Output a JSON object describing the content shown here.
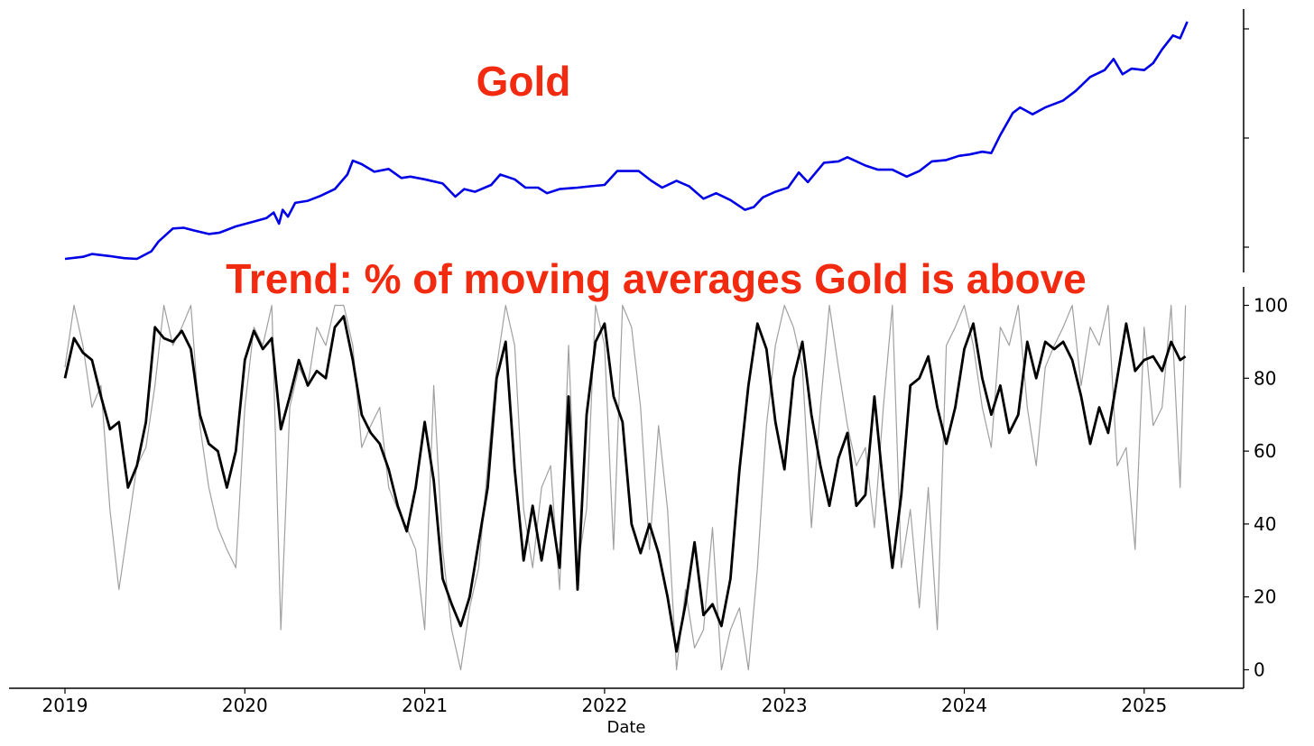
{
  "chart_data": [
    {
      "type": "line",
      "title": "Gold",
      "x_unit": "year",
      "xlim": [
        2019.0,
        2025.23
      ],
      "y_ticks_labeled": false,
      "series": [
        {
          "color": "#0000e6",
          "x": [
            2019.0,
            2019.1,
            2019.15,
            2019.25,
            2019.33,
            2019.4,
            2019.48,
            2019.52,
            2019.6,
            2019.66,
            2019.72,
            2019.8,
            2019.86,
            2019.95,
            2020.05,
            2020.12,
            2020.16,
            2020.19,
            2020.21,
            2020.24,
            2020.28,
            2020.35,
            2020.42,
            2020.5,
            2020.57,
            2020.6,
            2020.65,
            2020.72,
            2020.8,
            2020.87,
            2020.92,
            2021.0,
            2021.1,
            2021.17,
            2021.22,
            2021.28,
            2021.37,
            2021.42,
            2021.5,
            2021.56,
            2021.63,
            2021.68,
            2021.75,
            2021.85,
            2021.92,
            2022.0,
            2022.07,
            2022.19,
            2022.26,
            2022.32,
            2022.4,
            2022.47,
            2022.55,
            2022.62,
            2022.7,
            2022.78,
            2022.83,
            2022.88,
            2022.95,
            2023.02,
            2023.08,
            2023.13,
            2023.22,
            2023.3,
            2023.35,
            2023.45,
            2023.52,
            2023.6,
            2023.68,
            2023.75,
            2023.82,
            2023.9,
            2023.97,
            2024.03,
            2024.1,
            2024.15,
            2024.2,
            2024.27,
            2024.31,
            2024.38,
            2024.45,
            2024.55,
            2024.62,
            2024.7,
            2024.78,
            2024.83,
            2024.88,
            2024.93,
            2025.0,
            2025.05,
            2025.1,
            2025.16,
            2025.2,
            2025.24
          ],
          "y": [
            1285,
            1300,
            1320,
            1305,
            1290,
            1285,
            1340,
            1410,
            1505,
            1510,
            1490,
            1465,
            1475,
            1520,
            1555,
            1580,
            1620,
            1540,
            1640,
            1590,
            1690,
            1705,
            1740,
            1790,
            1895,
            1995,
            1970,
            1915,
            1935,
            1870,
            1880,
            1860,
            1830,
            1735,
            1790,
            1770,
            1820,
            1895,
            1860,
            1800,
            1800,
            1760,
            1790,
            1800,
            1810,
            1820,
            1920,
            1920,
            1850,
            1800,
            1850,
            1810,
            1720,
            1760,
            1710,
            1640,
            1660,
            1730,
            1770,
            1800,
            1910,
            1840,
            1980,
            1990,
            2020,
            1960,
            1930,
            1930,
            1880,
            1920,
            1990,
            2000,
            2030,
            2040,
            2060,
            2050,
            2180,
            2340,
            2380,
            2330,
            2380,
            2430,
            2500,
            2600,
            2650,
            2730,
            2620,
            2660,
            2650,
            2700,
            2800,
            2900,
            2880,
            3000
          ]
        }
      ]
    },
    {
      "type": "line",
      "title": "Trend: % of moving averages Gold is above",
      "xlabel": "Date",
      "x_unit": "year",
      "x_ticks": [
        "2019",
        "2020",
        "2021",
        "2022",
        "2023",
        "2024",
        "2025"
      ],
      "y_ticks": [
        "0",
        "20",
        "40",
        "60",
        "80",
        "100"
      ],
      "xlim": [
        2019.0,
        2025.23
      ],
      "ylim": [
        0,
        100
      ],
      "series": [
        {
          "color": "#a0a0a0",
          "x": [
            2019.0,
            2019.05,
            2019.1,
            2019.15,
            2019.2,
            2019.25,
            2019.3,
            2019.35,
            2019.4,
            2019.45,
            2019.5,
            2019.55,
            2019.6,
            2019.65,
            2019.7,
            2019.75,
            2019.8,
            2019.85,
            2019.9,
            2019.95,
            2020.0,
            2020.05,
            2020.1,
            2020.15,
            2020.2,
            2020.25,
            2020.3,
            2020.35,
            2020.4,
            2020.45,
            2020.5,
            2020.55,
            2020.6,
            2020.65,
            2020.7,
            2020.75,
            2020.8,
            2020.85,
            2020.9,
            2020.95,
            2021.0,
            2021.05,
            2021.1,
            2021.15,
            2021.2,
            2021.25,
            2021.3,
            2021.35,
            2021.4,
            2021.45,
            2021.5,
            2021.55,
            2021.6,
            2021.65,
            2021.7,
            2021.75,
            2021.8,
            2021.85,
            2021.9,
            2021.95,
            2022.0,
            2022.05,
            2022.1,
            2022.15,
            2022.2,
            2022.25,
            2022.3,
            2022.35,
            2022.4,
            2022.45,
            2022.5,
            2022.55,
            2022.6,
            2022.65,
            2022.7,
            2022.75,
            2022.8,
            2022.85,
            2022.9,
            2022.95,
            2023.0,
            2023.05,
            2023.1,
            2023.15,
            2023.2,
            2023.25,
            2023.3,
            2023.35,
            2023.4,
            2023.45,
            2023.5,
            2023.55,
            2023.6,
            2023.65,
            2023.7,
            2023.75,
            2023.8,
            2023.85,
            2023.9,
            2023.95,
            2024.0,
            2024.05,
            2024.1,
            2024.15,
            2024.2,
            2024.25,
            2024.3,
            2024.35,
            2024.4,
            2024.45,
            2024.5,
            2024.55,
            2024.6,
            2024.65,
            2024.7,
            2024.75,
            2024.8,
            2024.85,
            2024.9,
            2024.95,
            2025.0,
            2025.05,
            2025.1,
            2025.15,
            2025.2,
            2025.23
          ],
          "y": [
            83,
            100,
            89,
            72,
            78,
            44,
            22,
            39,
            56,
            61,
            78,
            100,
            89,
            94,
            100,
            67,
            50,
            39,
            33,
            28,
            72,
            94,
            89,
            100,
            11,
            72,
            83,
            78,
            94,
            89,
            100,
            100,
            89,
            61,
            67,
            72,
            50,
            44,
            39,
            33,
            11,
            78,
            33,
            11,
            0,
            17,
            28,
            56,
            83,
            100,
            89,
            44,
            28,
            50,
            56,
            22,
            89,
            28,
            44,
            100,
            89,
            33,
            100,
            94,
            72,
            33,
            67,
            44,
            0,
            22,
            6,
            11,
            39,
            0,
            11,
            17,
            0,
            28,
            67,
            89,
            100,
            94,
            83,
            39,
            72,
            100,
            83,
            67,
            56,
            61,
            39,
            72,
            100,
            28,
            44,
            17,
            50,
            11,
            89,
            94,
            100,
            89,
            72,
            61,
            94,
            89,
            100,
            72,
            56,
            83,
            89,
            94,
            100,
            78,
            94,
            89,
            100,
            56,
            61,
            33,
            94,
            67,
            72,
            100,
            50,
            100
          ]
        },
        {
          "color": "#000000",
          "x": [
            2019.0,
            2019.05,
            2019.1,
            2019.15,
            2019.2,
            2019.25,
            2019.3,
            2019.35,
            2019.4,
            2019.45,
            2019.5,
            2019.55,
            2019.6,
            2019.65,
            2019.7,
            2019.75,
            2019.8,
            2019.85,
            2019.9,
            2019.95,
            2020.0,
            2020.05,
            2020.1,
            2020.15,
            2020.2,
            2020.25,
            2020.3,
            2020.35,
            2020.4,
            2020.45,
            2020.5,
            2020.55,
            2020.6,
            2020.65,
            2020.7,
            2020.75,
            2020.8,
            2020.85,
            2020.9,
            2020.95,
            2021.0,
            2021.05,
            2021.1,
            2021.15,
            2021.2,
            2021.25,
            2021.3,
            2021.35,
            2021.4,
            2021.45,
            2021.5,
            2021.55,
            2021.6,
            2021.65,
            2021.7,
            2021.75,
            2021.8,
            2021.85,
            2021.9,
            2021.95,
            2022.0,
            2022.05,
            2022.1,
            2022.15,
            2022.2,
            2022.25,
            2022.3,
            2022.35,
            2022.4,
            2022.45,
            2022.5,
            2022.55,
            2022.6,
            2022.65,
            2022.7,
            2022.75,
            2022.8,
            2022.85,
            2022.9,
            2022.95,
            2023.0,
            2023.05,
            2023.1,
            2023.15,
            2023.2,
            2023.25,
            2023.3,
            2023.35,
            2023.4,
            2023.45,
            2023.5,
            2023.55,
            2023.6,
            2023.65,
            2023.7,
            2023.75,
            2023.8,
            2023.85,
            2023.9,
            2023.95,
            2024.0,
            2024.05,
            2024.1,
            2024.15,
            2024.2,
            2024.25,
            2024.3,
            2024.35,
            2024.4,
            2024.45,
            2024.5,
            2024.55,
            2024.6,
            2024.65,
            2024.7,
            2024.75,
            2024.8,
            2024.85,
            2024.9,
            2024.95,
            2025.0,
            2025.05,
            2025.1,
            2025.15,
            2025.2,
            2025.23
          ],
          "y": [
            80,
            91,
            87,
            85,
            75,
            66,
            68,
            50,
            56,
            68,
            94,
            91,
            90,
            93,
            88,
            70,
            62,
            60,
            50,
            60,
            85,
            93,
            88,
            91,
            66,
            75,
            85,
            78,
            82,
            80,
            94,
            97,
            85,
            70,
            65,
            62,
            55,
            45,
            38,
            50,
            68,
            52,
            25,
            18,
            12,
            20,
            35,
            50,
            80,
            90,
            55,
            30,
            45,
            30,
            45,
            28,
            75,
            22,
            70,
            90,
            95,
            75,
            68,
            40,
            32,
            40,
            32,
            20,
            5,
            18,
            35,
            15,
            18,
            12,
            25,
            55,
            78,
            95,
            88,
            68,
            55,
            80,
            90,
            70,
            56,
            45,
            58,
            65,
            45,
            48,
            75,
            50,
            28,
            48,
            78,
            80,
            86,
            72,
            62,
            72,
            88,
            95,
            80,
            70,
            78,
            65,
            70,
            90,
            80,
            90,
            88,
            90,
            85,
            75,
            62,
            72,
            65,
            80,
            95,
            82,
            85,
            86,
            82,
            90,
            85,
            86
          ]
        }
      ]
    }
  ]
}
